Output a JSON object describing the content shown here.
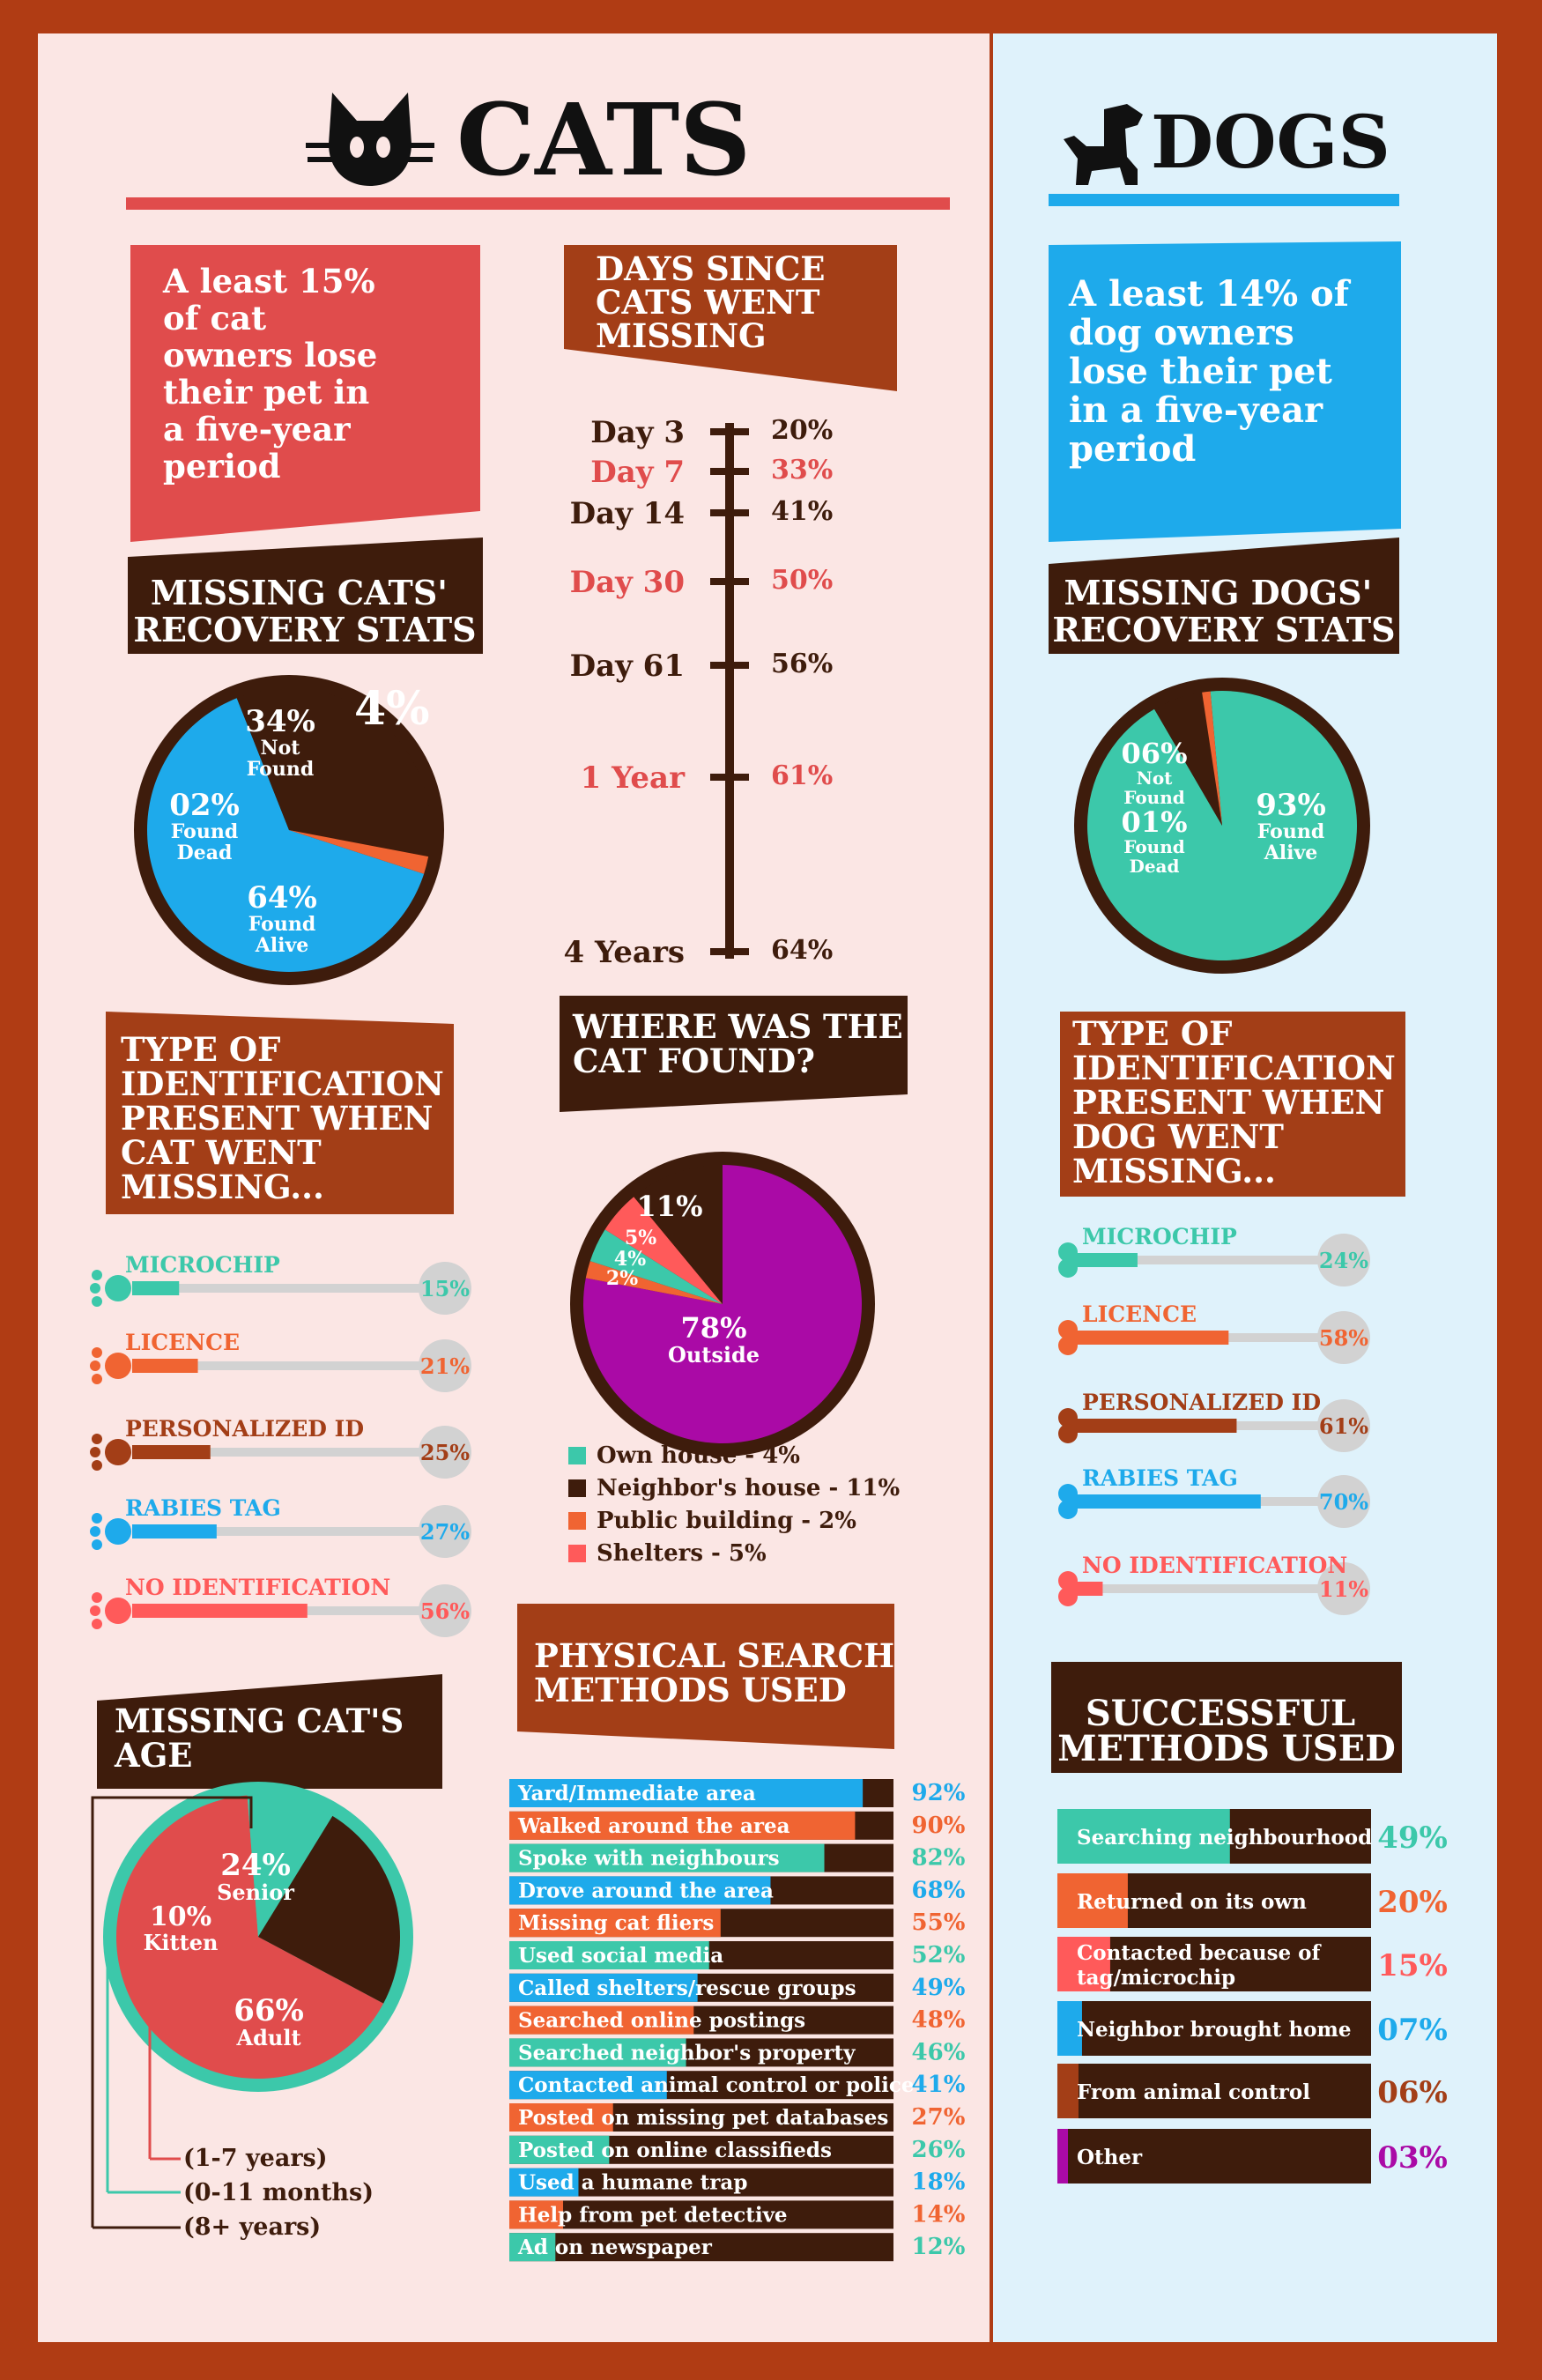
{
  "colors": {
    "border": "#b03c14",
    "brown": "#3e1c0c",
    "rust": "#a33e17",
    "red": "#e04c4c",
    "blue": "#1eaaeb",
    "teal": "#3cc8aa",
    "orange": "#f06432",
    "magenta": "#aa0aa6",
    "grey": "#d2d2d2",
    "cats_bg": "#fbe6e4",
    "dogs_bg": "#dff2fb"
  },
  "header": {
    "cats_title": "CATS",
    "dogs_title": "DOGS",
    "cats_icon": "cat-head-icon",
    "dogs_icon": "dog-icon"
  },
  "cats": {
    "intro_lines": [
      "A least 15%",
      "of cat",
      "owners lose",
      "their pet in",
      "a five-year",
      "period"
    ],
    "recovery_title_lines": [
      "MISSING CATS'",
      "RECOVERY STATS"
    ],
    "recovery_overlap_text": "4%"
  },
  "days": {
    "title_lines": [
      "DAYS SINCE",
      "CATS WENT",
      "MISSING"
    ]
  },
  "found": {
    "title_lines": [
      "WHERE WAS THE",
      "CAT FOUND?"
    ],
    "legend": [
      {
        "label": "Own house - 4%",
        "color": "#3cc8aa"
      },
      {
        "label": "Neighbor's house - 11%",
        "color": "#3e1c0c"
      },
      {
        "label": "Public building - 2%",
        "color": "#f06432"
      },
      {
        "label": "Shelters - 5%",
        "color": "#ff5a5a"
      }
    ]
  },
  "cat_id": {
    "title_lines": [
      "TYPE OF",
      "IDENTIFICATION",
      "PRESENT WHEN",
      "CAT WENT",
      "MISSING..."
    ]
  },
  "dogs": {
    "intro_lines": [
      "A least 14% of",
      "dog owners",
      "lose their pet",
      "in a five-year",
      "period"
    ],
    "recovery_title_lines": [
      "MISSING DOGS'",
      "RECOVERY STATS"
    ]
  },
  "dog_id": {
    "title_lines": [
      "TYPE OF",
      "IDENTIFICATION",
      "PRESENT WHEN",
      "DOG WENT",
      "MISSING..."
    ]
  },
  "age": {
    "title_lines": [
      "MISSING CAT'S",
      "AGE"
    ],
    "legend": [
      "(1-7 years)",
      "(0-11 months)",
      "(8+ years)"
    ]
  },
  "search": {
    "title_lines": [
      "PHYSICAL SEARCH",
      "METHODS USED"
    ]
  },
  "success": {
    "title_lines": [
      "SUCCESSFUL",
      "METHODS USED"
    ]
  },
  "chart_data": [
    {
      "type": "pie",
      "title": "MISSING CATS' RECOVERY STATS",
      "slices": [
        {
          "value": "34%",
          "label": "Not Found",
          "color": "#3e1c0c"
        },
        {
          "value": "02%",
          "label": "Found Dead",
          "color": "#f06432"
        },
        {
          "value": "64%",
          "label": "Found Alive",
          "color": "#1eaaeb"
        }
      ]
    },
    {
      "type": "line",
      "title": "DAYS SINCE CATS WENT MISSING",
      "points": [
        {
          "day": "Day 3",
          "pct": "20%",
          "color": "#3e1c0c"
        },
        {
          "day": "Day 7",
          "pct": "33%",
          "color": "#e04c4c"
        },
        {
          "day": "Day 14",
          "pct": "41%",
          "color": "#3e1c0c"
        },
        {
          "day": "Day 30",
          "pct": "50%",
          "color": "#e04c4c"
        },
        {
          "day": "Day 61",
          "pct": "56%",
          "color": "#3e1c0c"
        },
        {
          "day": "1 Year",
          "pct": "61%",
          "color": "#e04c4c"
        },
        {
          "day": "4 Years",
          "pct": "64%",
          "color": "#3e1c0c"
        }
      ]
    },
    {
      "type": "pie",
      "title": "WHERE WAS THE CAT FOUND?",
      "slices": [
        {
          "value": "78%",
          "label": "Outside",
          "color": "#aa0aa6"
        },
        {
          "value": "11%",
          "label": "",
          "color": "#3e1c0c"
        },
        {
          "value": "5%",
          "label": "",
          "color": "#ff5a5a"
        },
        {
          "value": "4%",
          "label": "",
          "color": "#3cc8aa"
        },
        {
          "value": "2%",
          "label": "",
          "color": "#f06432"
        }
      ]
    },
    {
      "type": "bar",
      "title": "TYPE OF IDENTIFICATION PRESENT WHEN CAT WENT MISSING...",
      "items": [
        {
          "label": "MICROCHIP",
          "value": 15,
          "text": "15%",
          "color": "#3cc8aa"
        },
        {
          "label": "LICENCE",
          "value": 21,
          "text": "21%",
          "color": "#f06432"
        },
        {
          "label": "PERSONALIZED ID",
          "value": 25,
          "text": "25%",
          "color": "#a33e17"
        },
        {
          "label": "RABIES TAG",
          "value": 27,
          "text": "27%",
          "color": "#1eaaeb"
        },
        {
          "label": "NO IDENTIFICATION",
          "value": 56,
          "text": "56%",
          "color": "#ff5a5a"
        }
      ]
    },
    {
      "type": "pie",
      "title": "MISSING CAT'S AGE",
      "slices": [
        {
          "value": "66%",
          "label": "Adult",
          "color": "#e04c4c"
        },
        {
          "value": "10%",
          "label": "Kitten",
          "color": "#3cc8aa"
        },
        {
          "value": "24%",
          "label": "Senior",
          "color": "#3e1c0c"
        }
      ]
    },
    {
      "type": "bar",
      "title": "PHYSICAL SEARCH METHODS USED",
      "items": [
        {
          "label": "Yard/Immediate area",
          "value": 92,
          "text": "92%",
          "color": "#1eaaeb"
        },
        {
          "label": "Walked around the area",
          "value": 90,
          "text": "90%",
          "color": "#f06432"
        },
        {
          "label": "Spoke with neighbours",
          "value": 82,
          "text": "82%",
          "color": "#3cc8aa"
        },
        {
          "label": "Drove around the area",
          "value": 68,
          "text": "68%",
          "color": "#1eaaeb"
        },
        {
          "label": "Missing cat fliers",
          "value": 55,
          "text": "55%",
          "color": "#f06432"
        },
        {
          "label": "Used social media",
          "value": 52,
          "text": "52%",
          "color": "#3cc8aa"
        },
        {
          "label": "Called shelters/rescue groups",
          "value": 49,
          "text": "49%",
          "color": "#1eaaeb"
        },
        {
          "label": "Searched online postings",
          "value": 48,
          "text": "48%",
          "color": "#f06432"
        },
        {
          "label": "Searched neighbor's property",
          "value": 46,
          "text": "46%",
          "color": "#3cc8aa"
        },
        {
          "label": "Contacted animal control or police",
          "value": 41,
          "text": "41%",
          "color": "#1eaaeb"
        },
        {
          "label": "Posted on missing pet  databases",
          "value": 27,
          "text": "27%",
          "color": "#f06432"
        },
        {
          "label": "Posted on online classifieds",
          "value": 26,
          "text": "26%",
          "color": "#3cc8aa"
        },
        {
          "label": "Used a humane trap",
          "value": 18,
          "text": "18%",
          "color": "#1eaaeb"
        },
        {
          "label": "Help from pet detective",
          "value": 14,
          "text": "14%",
          "color": "#f06432"
        },
        {
          "label": "Ad on newspaper",
          "value": 12,
          "text": "12%",
          "color": "#3cc8aa"
        }
      ]
    },
    {
      "type": "pie",
      "title": "MISSING DOGS' RECOVERY STATS",
      "slices": [
        {
          "value": "93%",
          "label": "Found Alive",
          "color": "#3cc8aa"
        },
        {
          "value": "06%",
          "label": "Not Found",
          "color": "#3e1c0c"
        },
        {
          "value": "01%",
          "label": "Found Dead",
          "color": "#f06432"
        }
      ]
    },
    {
      "type": "bar",
      "title": "TYPE OF IDENTIFICATION PRESENT WHEN DOG WENT MISSING...",
      "items": [
        {
          "label": "MICROCHIP",
          "value": 24,
          "text": "24%",
          "color": "#3cc8aa"
        },
        {
          "label": "LICENCE",
          "value": 58,
          "text": "58%",
          "color": "#f06432"
        },
        {
          "label": "PERSONALIZED ID",
          "value": 61,
          "text": "61%",
          "color": "#a33e17"
        },
        {
          "label": "RABIES TAG",
          "value": 70,
          "text": "70%",
          "color": "#1eaaeb"
        },
        {
          "label": "NO IDENTIFICATION",
          "value": 11,
          "text": "11%",
          "color": "#ff5a5a"
        }
      ]
    },
    {
      "type": "bar",
      "title": "SUCCESSFUL METHODS USED",
      "items": [
        {
          "label": "Searching neighbourhood",
          "value": 49,
          "text": "49%",
          "color": "#3cc8aa"
        },
        {
          "label": "Returned on its own",
          "value": 20,
          "text": "20%",
          "color": "#f06432"
        },
        {
          "label": "Contacted because of tag/microchip",
          "value": 15,
          "text": "15%",
          "color": "#ff5a5a"
        },
        {
          "label": "Neighbor brought home",
          "value": 7,
          "text": "07%",
          "color": "#1eaaeb"
        },
        {
          "label": "From animal control",
          "value": 6,
          "text": "06%",
          "color": "#a33e17"
        },
        {
          "label": "Other",
          "value": 3,
          "text": "03%",
          "color": "#aa0aa6"
        }
      ]
    }
  ]
}
